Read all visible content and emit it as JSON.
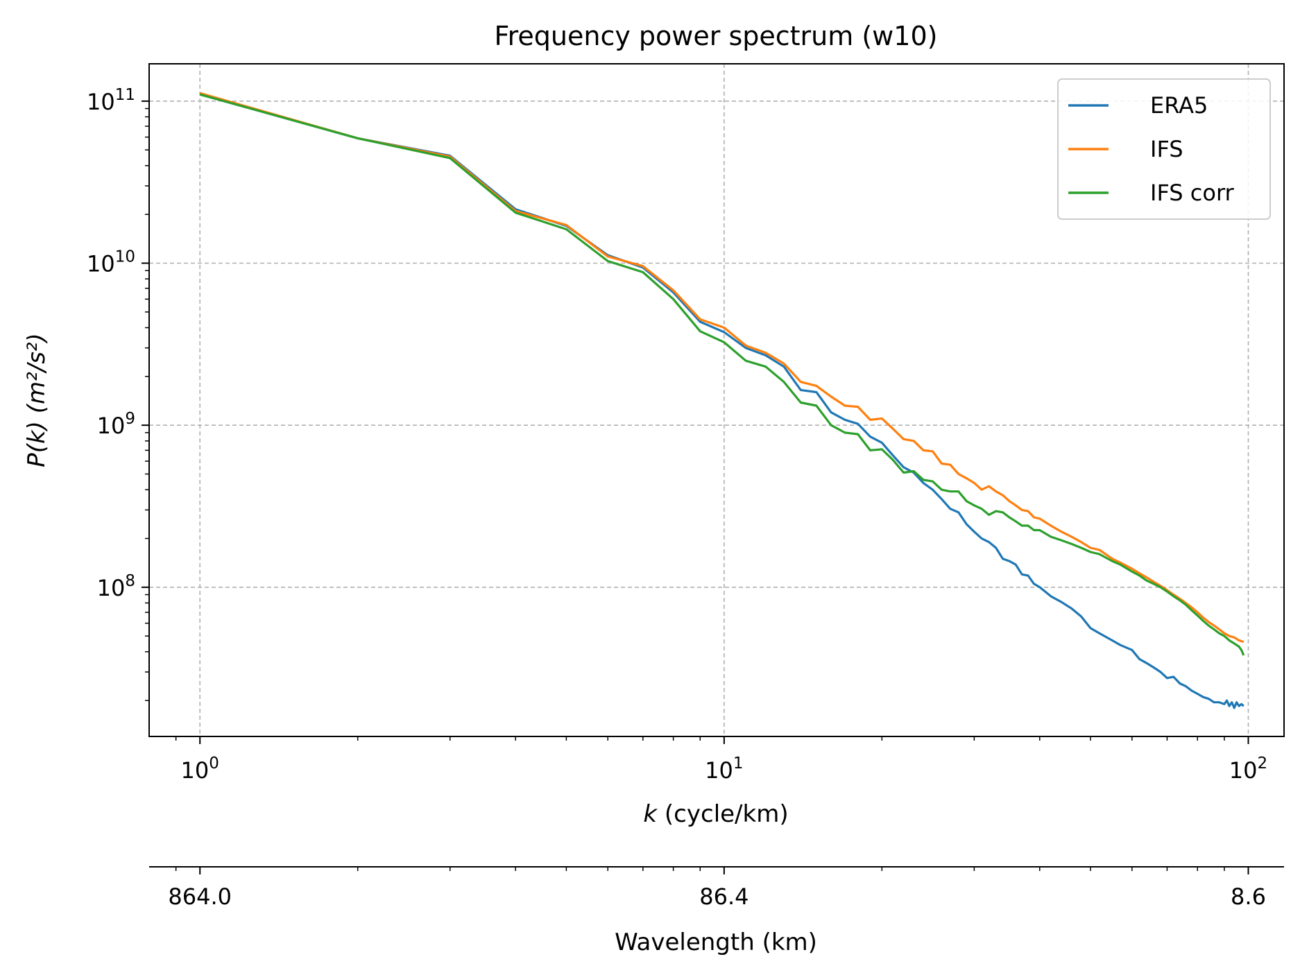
{
  "chart_data": {
    "type": "line",
    "title": "Frequency power spectrum (w10)",
    "xlabel_var": "k",
    "xlabel_rest": " (cycle/km)",
    "ylabel_var": "P(k)",
    "ylabel_unit": "(m²/s²)",
    "x_scale": "log",
    "y_scale": "log",
    "xlim": [
      0.8,
      117
    ],
    "ylim": [
      12000000,
      170000000000
    ],
    "grid": true,
    "legend_position": "top-right",
    "x_ticks": [
      {
        "value": 1,
        "base": "10",
        "exp": "0"
      },
      {
        "value": 10,
        "base": "10",
        "exp": "1"
      },
      {
        "value": 100,
        "base": "10",
        "exp": "2"
      }
    ],
    "y_ticks": [
      {
        "value": 100000000,
        "base": "10",
        "exp": "8"
      },
      {
        "value": 1000000000,
        "base": "10",
        "exp": "9"
      },
      {
        "value": 10000000000,
        "base": "10",
        "exp": "10"
      },
      {
        "value": 100000000000,
        "base": "10",
        "exp": "11"
      }
    ],
    "secondary_x_axis": {
      "label": "Wavelength (km)",
      "ticks": [
        {
          "k": 1,
          "label": "864.0"
        },
        {
          "k": 10,
          "label": "86.4"
        },
        {
          "k": 100,
          "label": "8.6"
        }
      ]
    },
    "series": [
      {
        "name": "ERA5",
        "color": "#1f77b4",
        "points": [
          [
            1,
            110000000000.0
          ],
          [
            2,
            59000000000.0
          ],
          [
            3,
            46000000000.0
          ],
          [
            4,
            21500000000.0
          ],
          [
            5,
            17000000000.0
          ],
          [
            6,
            11200000000.0
          ],
          [
            7,
            9400000000.0
          ],
          [
            8,
            6600000000.0
          ],
          [
            9,
            4350000000.0
          ],
          [
            10,
            3750000000.0
          ],
          [
            11,
            3000000000.0
          ],
          [
            12,
            2700000000.0
          ],
          [
            13,
            2300000000.0
          ],
          [
            14,
            1650000000.0
          ],
          [
            15,
            1600000000.0
          ],
          [
            16,
            1200000000.0
          ],
          [
            17,
            1080000000.0
          ],
          [
            18,
            1020000000.0
          ],
          [
            19,
            850000000.0
          ],
          [
            20,
            780000000.0
          ],
          [
            21,
            650000000.0
          ],
          [
            22,
            550000000.0
          ],
          [
            23,
            510000000.0
          ],
          [
            24,
            440000000.0
          ],
          [
            25,
            400000000.0
          ],
          [
            26,
            350000000.0
          ],
          [
            27,
            305000000.0
          ],
          [
            28,
            290000000.0
          ],
          [
            29,
            245000000.0
          ],
          [
            30,
            220000000.0
          ],
          [
            31,
            200000000.0
          ],
          [
            32,
            190000000.0
          ],
          [
            33,
            175000000.0
          ],
          [
            34,
            150000000.0
          ],
          [
            35,
            145000000.0
          ],
          [
            36,
            138000000.0
          ],
          [
            37,
            120000000.0
          ],
          [
            38,
            118000000.0
          ],
          [
            39,
            105000000.0
          ],
          [
            40,
            100000000.0
          ],
          [
            42,
            88000000.0
          ],
          [
            44,
            81000000.0
          ],
          [
            46,
            74000000.0
          ],
          [
            48,
            66000000.0
          ],
          [
            50,
            56000000.0
          ],
          [
            52,
            52000000.0
          ],
          [
            55,
            47000000.0
          ],
          [
            57,
            44000000.0
          ],
          [
            60,
            41000000.0
          ],
          [
            62,
            36000000.0
          ],
          [
            64,
            34000000.0
          ],
          [
            66,
            32000000.0
          ],
          [
            68,
            30000000.0
          ],
          [
            70,
            27500000.0
          ],
          [
            72,
            28000000.0
          ],
          [
            74,
            25500000.0
          ],
          [
            76,
            24500000.0
          ],
          [
            78,
            23000000.0
          ],
          [
            80,
            22000000.0
          ],
          [
            82,
            21000000.0
          ],
          [
            84,
            20500000.0
          ],
          [
            86,
            19500000.0
          ],
          [
            88,
            19500000.0
          ],
          [
            90,
            19000000.0
          ],
          [
            91,
            20000000.0
          ],
          [
            92,
            18500000.0
          ],
          [
            93,
            19500000.0
          ],
          [
            94,
            18000000.0
          ],
          [
            95,
            19500000.0
          ],
          [
            96,
            18500000.0
          ],
          [
            97,
            19000000.0
          ],
          [
            98,
            18500000.0
          ]
        ]
      },
      {
        "name": "IFS",
        "color": "#ff7f0e",
        "points": [
          [
            1,
            112000000000.0
          ],
          [
            2,
            59000000000.0
          ],
          [
            3,
            45500000000.0
          ],
          [
            4,
            21000000000.0
          ],
          [
            5,
            17200000000.0
          ],
          [
            6,
            11000000000.0
          ],
          [
            7,
            9600000000.0
          ],
          [
            8,
            6800000000.0
          ],
          [
            9,
            4500000000.0
          ],
          [
            10,
            4000000000.0
          ],
          [
            11,
            3100000000.0
          ],
          [
            12,
            2800000000.0
          ],
          [
            13,
            2400000000.0
          ],
          [
            14,
            1850000000.0
          ],
          [
            15,
            1750000000.0
          ],
          [
            16,
            1500000000.0
          ],
          [
            17,
            1320000000.0
          ],
          [
            18,
            1300000000.0
          ],
          [
            19,
            1080000000.0
          ],
          [
            20,
            1100000000.0
          ],
          [
            21,
            950000000.0
          ],
          [
            22,
            820000000.0
          ],
          [
            23,
            800000000.0
          ],
          [
            24,
            700000000.0
          ],
          [
            25,
            690000000.0
          ],
          [
            26,
            580000000.0
          ],
          [
            27,
            570000000.0
          ],
          [
            28,
            500000000.0
          ],
          [
            29,
            470000000.0
          ],
          [
            30,
            440000000.0
          ],
          [
            31,
            400000000.0
          ],
          [
            32,
            420000000.0
          ],
          [
            33,
            390000000.0
          ],
          [
            34,
            370000000.0
          ],
          [
            35,
            340000000.0
          ],
          [
            36,
            320000000.0
          ],
          [
            37,
            300000000.0
          ],
          [
            38,
            295000000.0
          ],
          [
            39,
            270000000.0
          ],
          [
            40,
            265000000.0
          ],
          [
            42,
            240000000.0
          ],
          [
            44,
            220000000.0
          ],
          [
            46,
            205000000.0
          ],
          [
            48,
            190000000.0
          ],
          [
            50,
            175000000.0
          ],
          [
            52,
            170000000.0
          ],
          [
            55,
            150000000.0
          ],
          [
            57,
            142000000.0
          ],
          [
            60,
            130000000.0
          ],
          [
            62,
            122000000.0
          ],
          [
            64,
            115000000.0
          ],
          [
            66,
            108000000.0
          ],
          [
            68,
            102000000.0
          ],
          [
            70,
            96000000.0
          ],
          [
            72,
            90000000.0
          ],
          [
            74,
            85000000.0
          ],
          [
            76,
            80000000.0
          ],
          [
            78,
            75000000.0
          ],
          [
            80,
            70000000.0
          ],
          [
            82,
            65000000.0
          ],
          [
            84,
            61000000.0
          ],
          [
            86,
            58000000.0
          ],
          [
            88,
            55000000.0
          ],
          [
            90,
            52000000.0
          ],
          [
            92,
            50000000.0
          ],
          [
            94,
            49000000.0
          ],
          [
            96,
            47000000.0
          ],
          [
            98,
            46000000.0
          ]
        ]
      },
      {
        "name": "IFS corr",
        "color": "#2ca02c",
        "points": [
          [
            1,
            110000000000.0
          ],
          [
            2,
            59000000000.0
          ],
          [
            3,
            44500000000.0
          ],
          [
            4,
            20500000000.0
          ],
          [
            5,
            16200000000.0
          ],
          [
            6,
            10300000000.0
          ],
          [
            7,
            8800000000.0
          ],
          [
            8,
            6000000000.0
          ],
          [
            9,
            3800000000.0
          ],
          [
            10,
            3250000000.0
          ],
          [
            11,
            2500000000.0
          ],
          [
            12,
            2300000000.0
          ],
          [
            13,
            1850000000.0
          ],
          [
            14,
            1380000000.0
          ],
          [
            15,
            1320000000.0
          ],
          [
            16,
            1000000000.0
          ],
          [
            17,
            900000000.0
          ],
          [
            18,
            880000000.0
          ],
          [
            19,
            700000000.0
          ],
          [
            20,
            710000000.0
          ],
          [
            21,
            610000000.0
          ],
          [
            22,
            510000000.0
          ],
          [
            23,
            520000000.0
          ],
          [
            24,
            460000000.0
          ],
          [
            25,
            450000000.0
          ],
          [
            26,
            400000000.0
          ],
          [
            27,
            390000000.0
          ],
          [
            28,
            390000000.0
          ],
          [
            29,
            340000000.0
          ],
          [
            30,
            320000000.0
          ],
          [
            31,
            305000000.0
          ],
          [
            32,
            280000000.0
          ],
          [
            33,
            295000000.0
          ],
          [
            34,
            290000000.0
          ],
          [
            35,
            270000000.0
          ],
          [
            36,
            255000000.0
          ],
          [
            37,
            240000000.0
          ],
          [
            38,
            240000000.0
          ],
          [
            39,
            225000000.0
          ],
          [
            40,
            225000000.0
          ],
          [
            42,
            205000000.0
          ],
          [
            44,
            195000000.0
          ],
          [
            46,
            185000000.0
          ],
          [
            48,
            175000000.0
          ],
          [
            50,
            165000000.0
          ],
          [
            52,
            160000000.0
          ],
          [
            55,
            145000000.0
          ],
          [
            57,
            138000000.0
          ],
          [
            60,
            125000000.0
          ],
          [
            62,
            118000000.0
          ],
          [
            64,
            110000000.0
          ],
          [
            66,
            105000000.0
          ],
          [
            68,
            100000000.0
          ],
          [
            70,
            94000000.0
          ],
          [
            72,
            88000000.0
          ],
          [
            74,
            83000000.0
          ],
          [
            76,
            78000000.0
          ],
          [
            78,
            72000000.0
          ],
          [
            80,
            67000000.0
          ],
          [
            82,
            62000000.0
          ],
          [
            84,
            58000000.0
          ],
          [
            86,
            55000000.0
          ],
          [
            88,
            52000000.0
          ],
          [
            90,
            50000000.0
          ],
          [
            92,
            47000000.0
          ],
          [
            94,
            45000000.0
          ],
          [
            96,
            43000000.0
          ],
          [
            97,
            41000000.0
          ],
          [
            98,
            38000000.0
          ]
        ]
      }
    ]
  }
}
